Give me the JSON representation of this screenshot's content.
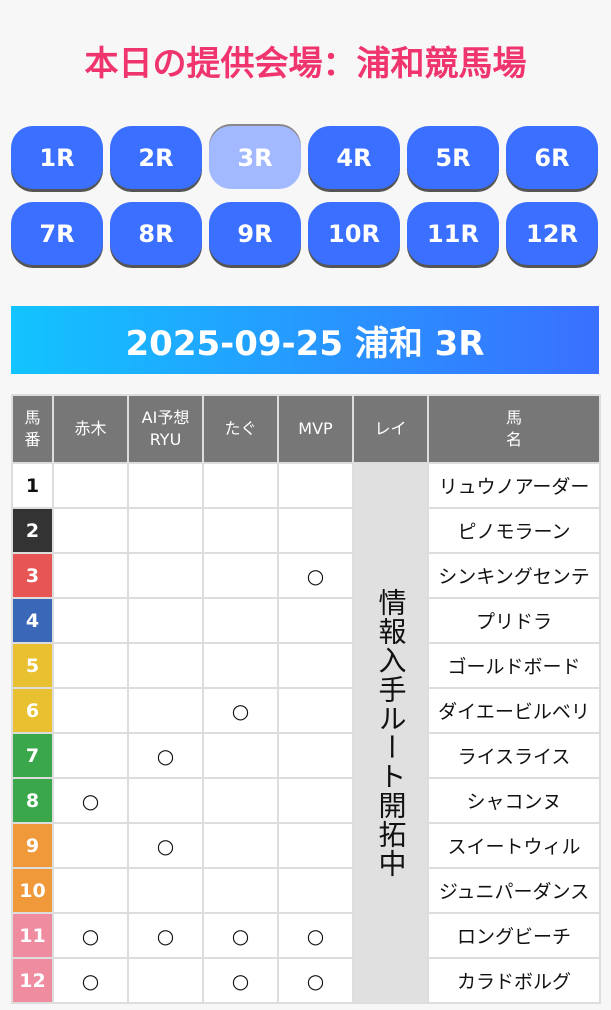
{
  "header": {
    "title": "本日の提供会場：浦和競馬場"
  },
  "races": [
    "1R",
    "2R",
    "3R",
    "4R",
    "5R",
    "6R",
    "7R",
    "8R",
    "9R",
    "10R",
    "11R",
    "12R"
  ],
  "active_race": "3R",
  "banner": "2025-09-25 浦和 3R",
  "table": {
    "headers": {
      "num": "馬\n番",
      "akagi": "赤木",
      "ai": "AI予想\nRYU",
      "tagu": "たぐ",
      "mvp": "MVP",
      "rei": "レイ",
      "name": "馬\n名"
    },
    "rei_note": "情報入手ルート開拓中",
    "mark": "○",
    "rows": [
      {
        "num": "1",
        "bg": "#ffffff",
        "fg": "#111111",
        "name": "リュウノアーダー",
        "akagi": "",
        "ai": "",
        "tagu": "",
        "mvp": ""
      },
      {
        "num": "2",
        "bg": "#333333",
        "fg": "#ffffff",
        "name": "ピノモラーン",
        "akagi": "",
        "ai": "",
        "tagu": "",
        "mvp": ""
      },
      {
        "num": "3",
        "bg": "#e85555",
        "fg": "#ffffff",
        "name": "シンキングセンテ",
        "akagi": "",
        "ai": "",
        "tagu": "",
        "mvp": "○"
      },
      {
        "num": "4",
        "bg": "#3a67b8",
        "fg": "#ffffff",
        "name": "プリドラ",
        "akagi": "",
        "ai": "",
        "tagu": "",
        "mvp": ""
      },
      {
        "num": "5",
        "bg": "#e8c030",
        "fg": "#ffffff",
        "name": "ゴールドボード",
        "akagi": "",
        "ai": "",
        "tagu": "",
        "mvp": ""
      },
      {
        "num": "6",
        "bg": "#e8c030",
        "fg": "#ffffff",
        "name": "ダイエービルベリ",
        "akagi": "",
        "ai": "",
        "tagu": "○",
        "mvp": ""
      },
      {
        "num": "7",
        "bg": "#3aa84a",
        "fg": "#ffffff",
        "name": "ライスライス",
        "akagi": "",
        "ai": "○",
        "tagu": "",
        "mvp": ""
      },
      {
        "num": "8",
        "bg": "#3aa84a",
        "fg": "#ffffff",
        "name": "シャコンヌ",
        "akagi": "○",
        "ai": "",
        "tagu": "",
        "mvp": ""
      },
      {
        "num": "9",
        "bg": "#f0993a",
        "fg": "#ffffff",
        "name": "スイートウィル",
        "akagi": "",
        "ai": "○",
        "tagu": "",
        "mvp": ""
      },
      {
        "num": "10",
        "bg": "#f0993a",
        "fg": "#ffffff",
        "name": "ジュニパーダンス",
        "akagi": "",
        "ai": "",
        "tagu": "",
        "mvp": ""
      },
      {
        "num": "11",
        "bg": "#f08ca0",
        "fg": "#ffffff",
        "name": "ロングビーチ",
        "akagi": "○",
        "ai": "○",
        "tagu": "○",
        "mvp": "○"
      },
      {
        "num": "12",
        "bg": "#f08ca0",
        "fg": "#ffffff",
        "name": "カラドボルグ",
        "akagi": "○",
        "ai": "",
        "tagu": "○",
        "mvp": "○"
      }
    ]
  }
}
